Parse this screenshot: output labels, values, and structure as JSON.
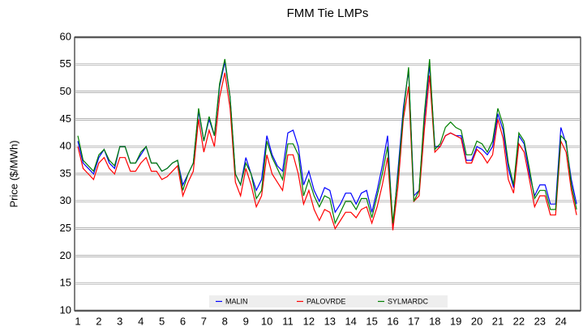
{
  "chart_data": {
    "type": "line",
    "title": "FMM Tie LMPs",
    "y_label": "Price ($/MWh)",
    "categories": [
      "1",
      null,
      null,
      null,
      "2",
      null,
      null,
      null,
      "3",
      null,
      null,
      null,
      "4",
      null,
      null,
      null,
      "5",
      null,
      null,
      null,
      "6",
      null,
      null,
      null,
      "7",
      null,
      null,
      null,
      "8",
      null,
      null,
      null,
      "9",
      null,
      null,
      null,
      "10",
      null,
      null,
      null,
      "11",
      null,
      null,
      null,
      "12",
      null,
      null,
      null,
      "13",
      null,
      null,
      null,
      "14",
      null,
      null,
      null,
      "15",
      null,
      null,
      null,
      "16",
      null,
      null,
      null,
      "17",
      null,
      null,
      null,
      "18",
      null,
      null,
      null,
      "19",
      null,
      null,
      null,
      "20",
      null,
      null,
      null,
      "21",
      null,
      null,
      null,
      "22",
      null,
      null,
      null,
      "23",
      null,
      null,
      null,
      "24",
      null,
      null,
      null
    ],
    "series": [
      {
        "name": "MALIN",
        "color": "#0000ff",
        "values": [
          41,
          37,
          36,
          35,
          38,
          39.5,
          37,
          36,
          40,
          40,
          37,
          37,
          38.5,
          40,
          37,
          37,
          35.5,
          36,
          37,
          37.5,
          33,
          35,
          37,
          46.5,
          41,
          45,
          42,
          51,
          55.5,
          49,
          35,
          33,
          38,
          35,
          32,
          34,
          42,
          38.5,
          36.5,
          35.5,
          42.5,
          43,
          40,
          33,
          35.5,
          32,
          30,
          32.5,
          32,
          28,
          29.5,
          31.5,
          31.5,
          29.5,
          31.5,
          32,
          28,
          32,
          36.5,
          42,
          25,
          36,
          47,
          54,
          31,
          32,
          45,
          55,
          40,
          40,
          42,
          42.5,
          42,
          42,
          37.5,
          37.5,
          40,
          39.5,
          38.5,
          40,
          46,
          43,
          36,
          32.5,
          42,
          40.5,
          35,
          31,
          33,
          33,
          29.5,
          29.5,
          43.5,
          40.5,
          34,
          29.5
        ]
      },
      {
        "name": "PALOVRDE",
        "color": "#ff0000",
        "values": [
          40,
          36,
          35,
          34,
          37,
          38,
          36,
          35,
          38,
          38,
          35.5,
          35.5,
          37,
          38,
          35.5,
          35.5,
          34,
          34.5,
          35.5,
          36.5,
          31,
          33.5,
          35.5,
          45,
          39,
          43,
          40,
          49,
          53.5,
          47,
          33.5,
          31,
          36,
          33,
          29,
          31,
          38.5,
          35,
          33.5,
          32,
          38.5,
          38.5,
          35,
          29.5,
          32,
          28.5,
          26.5,
          28.5,
          28,
          25,
          26.5,
          28,
          28,
          27,
          28.5,
          29,
          26,
          29,
          33,
          38,
          24.7,
          33,
          45,
          51,
          30,
          31,
          43,
          53,
          39,
          40,
          42,
          42.5,
          42,
          41.5,
          37,
          37,
          39.5,
          38.5,
          37,
          38.5,
          45,
          41.5,
          34,
          31.5,
          40.5,
          39,
          34,
          29,
          31,
          31,
          27.5,
          27.5,
          41,
          39,
          32,
          27.5
        ]
      },
      {
        "name": "SYLMARDC",
        "color": "#008000",
        "values": [
          42,
          37.5,
          36.5,
          35.5,
          38.5,
          39.5,
          37.5,
          36.5,
          40,
          40,
          37,
          37,
          39,
          40,
          37,
          37,
          35.5,
          36,
          37,
          37.5,
          32,
          35,
          37,
          47,
          41,
          45.5,
          42,
          51.5,
          56,
          49,
          35,
          33,
          37,
          35,
          30.5,
          32,
          41,
          38,
          36,
          34,
          40.5,
          40.5,
          38.5,
          31,
          34,
          31,
          29,
          31,
          30.5,
          26,
          28,
          30,
          30,
          28.5,
          30.5,
          30.5,
          27,
          31,
          35,
          40,
          26,
          35,
          46,
          54.5,
          30,
          32,
          46,
          56,
          39.5,
          40.5,
          43.5,
          44.5,
          43.5,
          43,
          38.5,
          38.5,
          41,
          40.5,
          39,
          41,
          47,
          44,
          37,
          33,
          42.5,
          41,
          36,
          30.5,
          32,
          32,
          28.5,
          28.5,
          42,
          41,
          33,
          28.5
        ]
      }
    ],
    "ylim": [
      10,
      60
    ],
    "yticks": [
      10,
      15,
      20,
      25,
      30,
      35,
      40,
      45,
      50,
      55,
      60
    ],
    "grid": true
  }
}
